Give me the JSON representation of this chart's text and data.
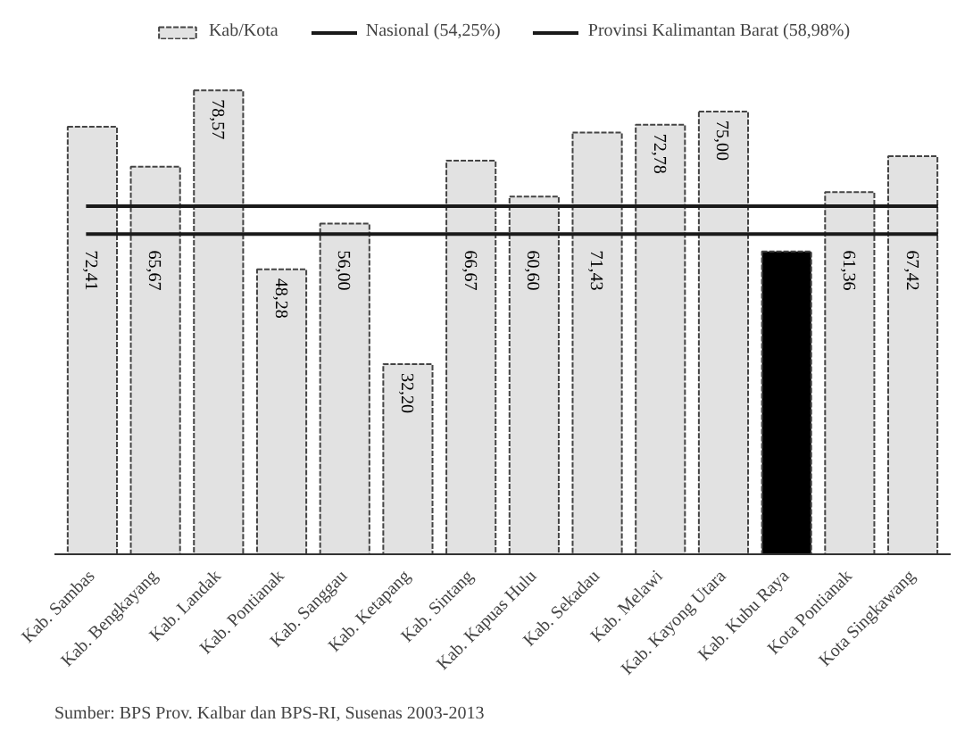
{
  "chart_data": {
    "type": "bar",
    "categories": [
      "Kab. Sambas",
      "Kab. Bengkayang",
      "Kab. Landak",
      "Kab. Pontianak",
      "Kab. Sanggau",
      "Kab. Ketapang",
      "Kab. Sintang",
      "Kab. Kapuas Hulu",
      "Kab. Sekadau",
      "Kab. Melawi",
      "Kab. Kayong Utara",
      "Kab. Kubu Raya",
      "Kota Pontianak",
      "Kota Singkawang"
    ],
    "series": [
      {
        "name": "Kab/Kota",
        "color": "#e2e2e2",
        "colors": [
          "#e2e2e2",
          "#e2e2e2",
          "#e2e2e2",
          "#e2e2e2",
          "#e2e2e2",
          "#e2e2e2",
          "#e2e2e2",
          "#e2e2e2",
          "#e2e2e2",
          "#e2e2e2",
          "#e2e2e2",
          "#000000",
          "#e2e2e2",
          "#e2e2e2"
        ],
        "values": [
          72.41,
          65.67,
          78.57,
          48.28,
          56.0,
          32.2,
          66.67,
          60.6,
          71.43,
          72.78,
          75.0,
          51.3,
          61.36,
          67.42
        ],
        "value_labels": [
          "72,41",
          "65,67",
          "78,57",
          "48,28",
          "56,00",
          "32,20",
          "66,67",
          "60,60",
          "71,43",
          "72,78",
          "75,00",
          null,
          "61,36",
          "67,42"
        ]
      }
    ],
    "ref_lines": [
      {
        "axis": "y",
        "value": 54.25,
        "label": "Nasional (54,25%)",
        "color": "#1a1a1a",
        "line_style": "solid"
      },
      {
        "axis": "y",
        "value": 58.98,
        "label": "Provinsi Kalimantan Barat (58,98%)",
        "color": "#1a1a1a",
        "line_style": "solid"
      }
    ],
    "tick_labels": "x",
    "grid": false,
    "legend": "top",
    "annotations": [
      "Sumber: BPS Prov. Kalbar dan BPS-RI, Susenas 2003-2013"
    ]
  }
}
